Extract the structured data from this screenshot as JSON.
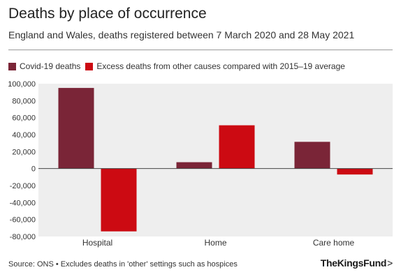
{
  "title": "Deaths by place of occurrence",
  "subtitle": "England and Wales, deaths registered between 7 March 2020 and 28 May 2021",
  "footer": "Source: ONS • Excludes deaths in 'other' settings such as hospices",
  "logo": "TheKingsFund",
  "logo_chevron": ">",
  "colors": {
    "covid": "#7a2537",
    "excess": "#cc0a12",
    "plot_bg": "#eeeeee",
    "axis": "#444444"
  },
  "chart_data": {
    "type": "bar",
    "categories": [
      "Hospital",
      "Home",
      "Care home"
    ],
    "series": [
      {
        "name": "Covid-19 deaths",
        "values": [
          95000,
          7500,
          31500
        ]
      },
      {
        "name": "Excess deaths from other causes compared with 2015–19 average",
        "values": [
          -74000,
          51000,
          -7000
        ]
      }
    ],
    "ylim": [
      -80000,
      100000
    ],
    "yticks": [
      100000,
      80000,
      60000,
      40000,
      20000,
      0,
      -20000,
      -40000,
      -60000,
      -80000
    ],
    "ytick_labels": [
      "100,000",
      "80,000",
      "60,000",
      "40,000",
      "20,000",
      "0",
      "-20,000",
      "-40,000",
      "-60,000",
      "-80,000"
    ],
    "legend": "top-left",
    "grid": false
  }
}
